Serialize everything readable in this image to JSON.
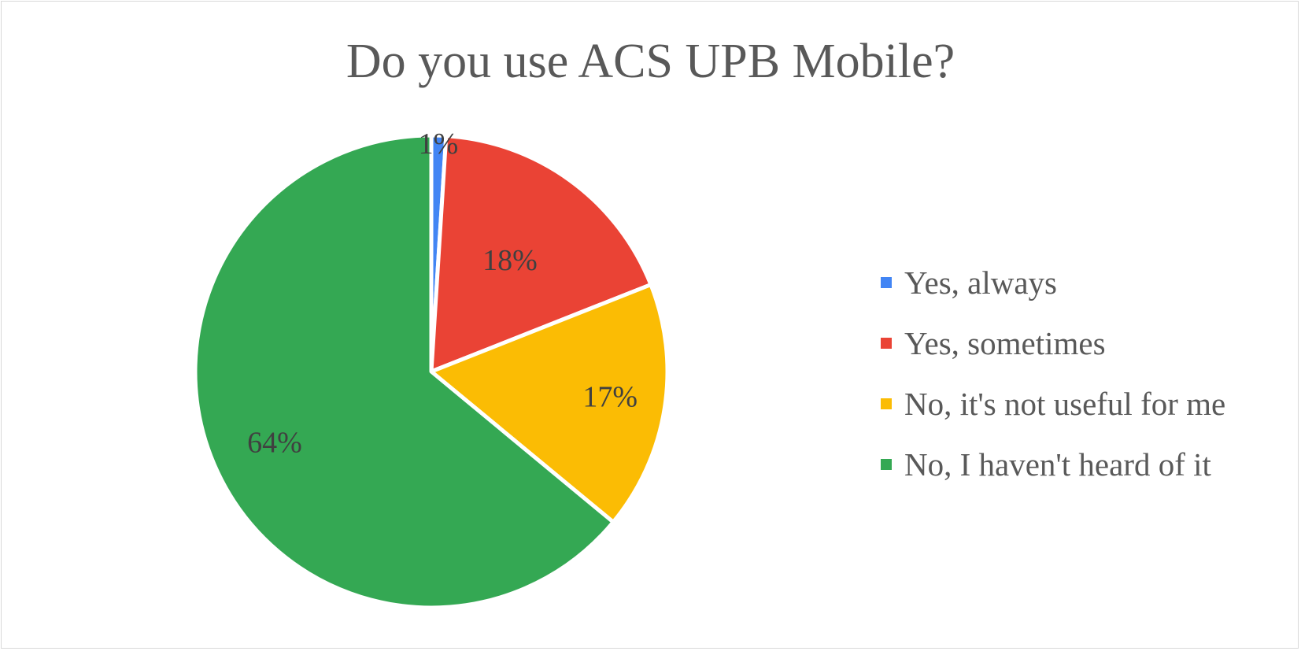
{
  "chart_data": {
    "type": "pie",
    "title": "Do you use ACS UPB Mobile?",
    "categories": [
      "Yes, always",
      "Yes, sometimes",
      "No, it's not useful for me",
      "No, I haven't heard of it"
    ],
    "values": [
      1,
      18,
      17,
      64
    ],
    "data_labels": [
      "1%",
      "18%",
      "17%",
      "64%"
    ],
    "colors": [
      "#4285F4",
      "#EA4335",
      "#FBBC04",
      "#34A853"
    ],
    "legend_position": "right",
    "start_angle_deg": 0,
    "direction": "clockwise"
  }
}
